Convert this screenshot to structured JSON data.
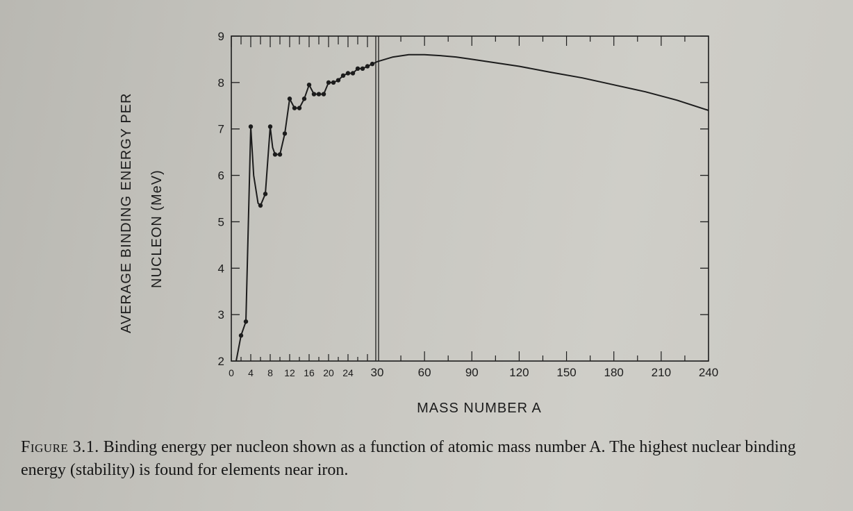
{
  "chart_data": {
    "type": "line",
    "xlabel": "MASS NUMBER A",
    "ylabel_line1": "AVERAGE BINDING ENERGY PER",
    "ylabel_line2": "NUCLEON   (MeV)",
    "ylim": [
      2,
      9
    ],
    "y_ticks": [
      "2",
      "3",
      "4",
      "5",
      "6",
      "7",
      "8",
      "9"
    ],
    "x_axis_left": {
      "range": [
        0,
        30
      ],
      "ticks": [
        "0",
        "4",
        "8",
        "12",
        "16",
        "20",
        "24"
      ]
    },
    "x_axis_right": {
      "range": [
        30,
        240
      ],
      "ticks": [
        "30",
        "60",
        "90",
        "120",
        "150",
        "180",
        "210",
        "240"
      ]
    },
    "grid": false,
    "series": [
      {
        "values_note": "",
        "x": [
          1,
          2,
          3,
          4,
          4.6,
          5.5,
          6,
          7,
          8,
          8.5,
          9,
          10,
          11,
          12,
          13,
          14,
          15,
          16,
          17,
          18,
          19,
          20,
          21,
          22,
          23,
          24,
          25,
          26,
          27,
          28,
          29,
          30
        ],
        "y": [
          2.0,
          2.55,
          2.85,
          7.05,
          6.0,
          5.4,
          5.35,
          5.6,
          7.05,
          6.6,
          6.45,
          6.45,
          6.9,
          7.65,
          7.45,
          7.45,
          7.65,
          7.95,
          7.75,
          7.75,
          7.75,
          8.0,
          8.0,
          8.05,
          8.15,
          8.2,
          8.2,
          8.3,
          8.3,
          8.35,
          8.4,
          8.45
        ]
      },
      {
        "x": [
          30,
          40,
          50,
          56,
          60,
          70,
          80,
          90,
          100,
          120,
          140,
          160,
          180,
          200,
          220,
          240
        ],
        "y": [
          8.45,
          8.55,
          8.6,
          8.6,
          8.6,
          8.58,
          8.55,
          8.5,
          8.45,
          8.35,
          8.22,
          8.1,
          7.95,
          7.8,
          7.62,
          7.4
        ]
      }
    ],
    "data_points": {
      "x": [
        2,
        3,
        4,
        6,
        7,
        8,
        9,
        10,
        11,
        12,
        13,
        14,
        15,
        16,
        17,
        18,
        19,
        20,
        21,
        22,
        23,
        24,
        25,
        26,
        27,
        28,
        29
      ],
      "y": [
        2.55,
        2.85,
        7.05,
        5.35,
        5.6,
        7.05,
        6.45,
        6.45,
        6.9,
        7.65,
        7.45,
        7.45,
        7.65,
        7.95,
        7.75,
        7.75,
        7.75,
        8.0,
        8.0,
        8.05,
        8.15,
        8.2,
        8.2,
        8.3,
        8.3,
        8.35,
        8.4
      ]
    }
  },
  "caption": {
    "label": "Figure 3.1.",
    "text": " Binding energy per nucleon shown as a function of atomic mass number A. The highest nuclear binding energy (stability) is found for elements near iron."
  },
  "colors": {
    "ink": "#1c1c1c",
    "paper": "#c6c5bf"
  }
}
